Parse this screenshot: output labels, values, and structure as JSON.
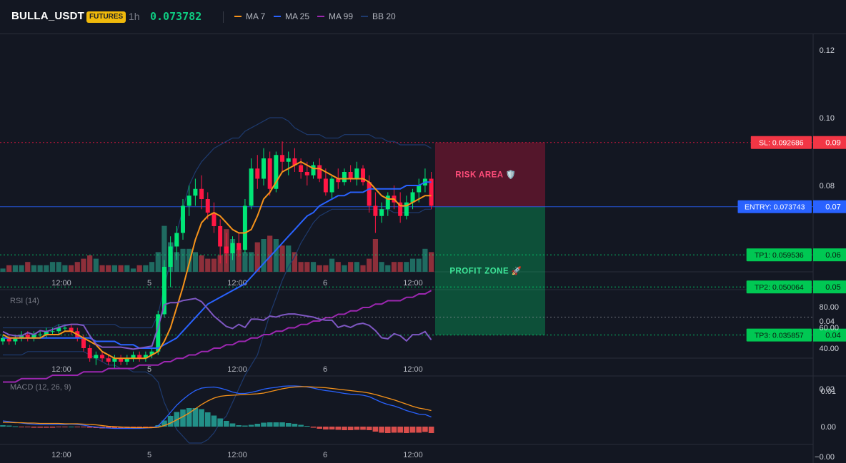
{
  "header": {
    "symbol": "BULLA_USDT",
    "badge": "FUTURES",
    "interval": "1h",
    "price": "0.073782",
    "legend": [
      {
        "label": "MA 7",
        "color": "#f7931a"
      },
      {
        "label": "MA 25",
        "color": "#2962ff"
      },
      {
        "label": "MA 99",
        "color": "#9c27b0"
      },
      {
        "label": "BB 20",
        "color": "#1e3a6e"
      }
    ]
  },
  "colors": {
    "up": "#26a69a",
    "down": "#ef5350",
    "candle_up": "#00e676",
    "candle_down": "#ff1744",
    "bb": "#1e3a6e"
  },
  "chart_data": [
    {
      "type": "candlestick",
      "xticks": [
        "12:00",
        "5",
        "12:00",
        "6",
        "12:00"
      ],
      "yticks": [
        "0.12",
        "0.10",
        "0.08",
        "0.04",
        "0.02",
        "−0.00"
      ],
      "ylim": [
        -0.012,
        0.126
      ],
      "candles": [
        [
          0.034,
          0.036,
          0.033,
          0.035
        ],
        [
          0.035,
          0.036,
          0.033,
          0.034
        ],
        [
          0.034,
          0.036,
          0.033,
          0.035
        ],
        [
          0.035,
          0.037,
          0.034,
          0.036
        ],
        [
          0.036,
          0.037,
          0.034,
          0.035
        ],
        [
          0.035,
          0.037,
          0.034,
          0.036
        ],
        [
          0.036,
          0.037,
          0.035,
          0.036
        ],
        [
          0.036,
          0.038,
          0.035,
          0.037
        ],
        [
          0.037,
          0.038,
          0.036,
          0.037
        ],
        [
          0.037,
          0.039,
          0.036,
          0.038
        ],
        [
          0.038,
          0.039,
          0.037,
          0.038
        ],
        [
          0.038,
          0.039,
          0.036,
          0.037
        ],
        [
          0.037,
          0.038,
          0.034,
          0.035
        ],
        [
          0.035,
          0.036,
          0.031,
          0.032
        ],
        [
          0.032,
          0.033,
          0.028,
          0.029
        ],
        [
          0.029,
          0.031,
          0.027,
          0.03
        ],
        [
          0.03,
          0.031,
          0.028,
          0.029
        ],
        [
          0.029,
          0.03,
          0.027,
          0.028
        ],
        [
          0.028,
          0.03,
          0.026,
          0.029
        ],
        [
          0.029,
          0.03,
          0.027,
          0.028
        ],
        [
          0.028,
          0.03,
          0.027,
          0.029
        ],
        [
          0.029,
          0.031,
          0.028,
          0.03
        ],
        [
          0.03,
          0.031,
          0.028,
          0.029
        ],
        [
          0.029,
          0.031,
          0.028,
          0.03
        ],
        [
          0.03,
          0.032,
          0.029,
          0.031
        ],
        [
          0.031,
          0.043,
          0.03,
          0.042
        ],
        [
          0.042,
          0.058,
          0.041,
          0.056
        ],
        [
          0.056,
          0.065,
          0.05,
          0.062
        ],
        [
          0.062,
          0.068,
          0.058,
          0.066
        ],
        [
          0.066,
          0.076,
          0.064,
          0.074
        ],
        [
          0.074,
          0.08,
          0.071,
          0.077
        ],
        [
          0.077,
          0.082,
          0.074,
          0.079
        ],
        [
          0.079,
          0.083,
          0.073,
          0.076
        ],
        [
          0.076,
          0.078,
          0.07,
          0.072
        ],
        [
          0.072,
          0.075,
          0.066,
          0.068
        ],
        [
          0.068,
          0.07,
          0.057,
          0.062
        ],
        [
          0.062,
          0.066,
          0.057,
          0.06
        ],
        [
          0.06,
          0.065,
          0.058,
          0.063
        ],
        [
          0.063,
          0.066,
          0.059,
          0.061
        ],
        [
          0.061,
          0.076,
          0.06,
          0.074
        ],
        [
          0.074,
          0.088,
          0.073,
          0.085
        ],
        [
          0.085,
          0.089,
          0.079,
          0.082
        ],
        [
          0.082,
          0.091,
          0.08,
          0.088
        ],
        [
          0.088,
          0.09,
          0.077,
          0.079
        ],
        [
          0.079,
          0.09,
          0.078,
          0.089
        ],
        [
          0.089,
          0.093,
          0.084,
          0.087
        ],
        [
          0.087,
          0.09,
          0.083,
          0.088
        ],
        [
          0.088,
          0.091,
          0.084,
          0.086
        ],
        [
          0.086,
          0.088,
          0.082,
          0.084
        ],
        [
          0.084,
          0.087,
          0.08,
          0.083
        ],
        [
          0.083,
          0.087,
          0.082,
          0.086
        ],
        [
          0.086,
          0.088,
          0.081,
          0.082
        ],
        [
          0.082,
          0.085,
          0.077,
          0.078
        ],
        [
          0.078,
          0.083,
          0.076,
          0.082
        ],
        [
          0.082,
          0.085,
          0.079,
          0.081
        ],
        [
          0.081,
          0.085,
          0.08,
          0.084
        ],
        [
          0.084,
          0.086,
          0.081,
          0.082
        ],
        [
          0.082,
          0.087,
          0.08,
          0.085
        ],
        [
          0.085,
          0.086,
          0.08,
          0.081
        ],
        [
          0.081,
          0.083,
          0.072,
          0.074
        ],
        [
          0.074,
          0.078,
          0.066,
          0.071
        ],
        [
          0.071,
          0.075,
          0.069,
          0.073
        ],
        [
          0.073,
          0.078,
          0.071,
          0.077
        ],
        [
          0.077,
          0.08,
          0.073,
          0.075
        ],
        [
          0.075,
          0.078,
          0.069,
          0.071
        ],
        [
          0.071,
          0.077,
          0.07,
          0.075
        ],
        [
          0.075,
          0.079,
          0.073,
          0.078
        ],
        [
          0.078,
          0.082,
          0.075,
          0.08
        ],
        [
          0.08,
          0.085,
          0.078,
          0.082
        ],
        [
          0.082,
          0.084,
          0.073,
          0.074
        ]
      ],
      "ma7": [
        0.036,
        0.035,
        0.035,
        0.035,
        0.035,
        0.035,
        0.035,
        0.036,
        0.036,
        0.036,
        0.037,
        0.037,
        0.036,
        0.035,
        0.034,
        0.033,
        0.031,
        0.03,
        0.029,
        0.029,
        0.029,
        0.029,
        0.029,
        0.029,
        0.03,
        0.031,
        0.034,
        0.038,
        0.044,
        0.05,
        0.057,
        0.064,
        0.069,
        0.071,
        0.072,
        0.071,
        0.069,
        0.067,
        0.066,
        0.066,
        0.067,
        0.071,
        0.076,
        0.078,
        0.081,
        0.084,
        0.085,
        0.086,
        0.087,
        0.086,
        0.085,
        0.085,
        0.084,
        0.083,
        0.082,
        0.082,
        0.082,
        0.082,
        0.082,
        0.081,
        0.079,
        0.077,
        0.076,
        0.076,
        0.074,
        0.074,
        0.075,
        0.076,
        0.077,
        0.077
      ],
      "ma25": [
        0.035,
        0.035,
        0.035,
        0.035,
        0.035,
        0.035,
        0.035,
        0.035,
        0.035,
        0.035,
        0.035,
        0.035,
        0.035,
        0.035,
        0.035,
        0.034,
        0.034,
        0.034,
        0.034,
        0.033,
        0.033,
        0.033,
        0.032,
        0.032,
        0.032,
        0.032,
        0.033,
        0.034,
        0.035,
        0.037,
        0.039,
        0.041,
        0.043,
        0.045,
        0.046,
        0.047,
        0.048,
        0.049,
        0.05,
        0.051,
        0.053,
        0.055,
        0.057,
        0.059,
        0.061,
        0.063,
        0.065,
        0.067,
        0.069,
        0.071,
        0.072,
        0.074,
        0.075,
        0.076,
        0.077,
        0.077,
        0.078,
        0.078,
        0.078,
        0.079,
        0.079,
        0.079,
        0.079,
        0.079,
        0.079,
        0.08,
        0.08,
        0.08,
        0.081,
        0.081
      ],
      "ma99": [
        0.022,
        0.022,
        0.022,
        0.023,
        0.023,
        0.023,
        0.023,
        0.023,
        0.024,
        0.024,
        0.024,
        0.024,
        0.024,
        0.025,
        0.025,
        0.025,
        0.025,
        0.026,
        0.026,
        0.026,
        0.026,
        0.026,
        0.027,
        0.027,
        0.027,
        0.027,
        0.028,
        0.028,
        0.029,
        0.029,
        0.03,
        0.03,
        0.031,
        0.031,
        0.032,
        0.032,
        0.033,
        0.033,
        0.034,
        0.034,
        0.035,
        0.035,
        0.036,
        0.036,
        0.037,
        0.037,
        0.038,
        0.038,
        0.039,
        0.039,
        0.04,
        0.04,
        0.041,
        0.041,
        0.042,
        0.042,
        0.043,
        0.043,
        0.044,
        0.044,
        0.045,
        0.045,
        0.046,
        0.046,
        0.046,
        0.047,
        0.047,
        0.048,
        0.048,
        0.049
      ],
      "bb_upper": [
        0.038,
        0.038,
        0.038,
        0.038,
        0.038,
        0.038,
        0.038,
        0.038,
        0.038,
        0.039,
        0.039,
        0.039,
        0.039,
        0.039,
        0.039,
        0.039,
        0.039,
        0.039,
        0.039,
        0.038,
        0.038,
        0.038,
        0.038,
        0.038,
        0.038,
        0.042,
        0.05,
        0.058,
        0.066,
        0.073,
        0.08,
        0.084,
        0.087,
        0.089,
        0.091,
        0.092,
        0.093,
        0.094,
        0.094,
        0.096,
        0.097,
        0.098,
        0.099,
        0.1,
        0.1,
        0.1,
        0.099,
        0.097,
        0.096,
        0.095,
        0.095,
        0.095,
        0.094,
        0.094,
        0.094,
        0.095,
        0.095,
        0.095,
        0.095,
        0.095,
        0.094,
        0.094,
        0.093,
        0.093,
        0.092,
        0.092,
        0.092,
        0.092,
        0.092,
        0.091
      ],
      "bb_lower": [
        0.03,
        0.03,
        0.03,
        0.03,
        0.031,
        0.031,
        0.031,
        0.031,
        0.031,
        0.031,
        0.031,
        0.031,
        0.031,
        0.031,
        0.03,
        0.029,
        0.028,
        0.027,
        0.027,
        0.026,
        0.026,
        0.025,
        0.025,
        0.025,
        0.024,
        0.022,
        0.016,
        0.012,
        0.008,
        0.006,
        0.004,
        0.004,
        0.004,
        0.005,
        0.007,
        0.01,
        0.012,
        0.016,
        0.02,
        0.024,
        0.027,
        0.03,
        0.036,
        0.042,
        0.047,
        0.052,
        0.056,
        0.059,
        0.063,
        0.066,
        0.069,
        0.071,
        0.072,
        0.073,
        0.073,
        0.073,
        0.073,
        0.073,
        0.073,
        0.073,
        0.073,
        0.073,
        0.073,
        0.072,
        0.072,
        0.072,
        0.072,
        0.072,
        0.073,
        0.073
      ],
      "volume": [
        1,
        2,
        2,
        2,
        3,
        2,
        2,
        2,
        3,
        3,
        2,
        2,
        3,
        4,
        5,
        4,
        2,
        2,
        2,
        2,
        2,
        1,
        2,
        2,
        3,
        6,
        14,
        9,
        6,
        7,
        7,
        6,
        5,
        4,
        4,
        5,
        13,
        10,
        7,
        6,
        6,
        9,
        10,
        11,
        10,
        8,
        8,
        6,
        3,
        3,
        3,
        2,
        2,
        4,
        3,
        2,
        3,
        3,
        2,
        4,
        10,
        3,
        2,
        3,
        3,
        3,
        4,
        4,
        7,
        6
      ],
      "levels": [
        {
          "name": "SL",
          "label": "SL: 0.092686",
          "value": 0.092686,
          "tag": "0.09",
          "color": "#ff1744",
          "style": "dashed"
        },
        {
          "name": "ENTRY",
          "label": "ENTRY: 0.073743",
          "value": 0.073743,
          "tag": "0.07",
          "color": "#2962ff",
          "style": "solid"
        },
        {
          "name": "TP1",
          "label": "TP1: 0.059536",
          "value": 0.059536,
          "tag": "0.06",
          "color": "#00e676",
          "style": "dashed"
        },
        {
          "name": "TP2",
          "label": "TP2: 0.050064",
          "value": 0.050064,
          "tag": "0.05",
          "color": "#00e676",
          "style": "dashed"
        },
        {
          "name": "TP3",
          "label": "TP3: 0.035857",
          "value": 0.035857,
          "tag": "0.04",
          "color": "#00e676",
          "style": "dashed"
        }
      ],
      "zones": [
        {
          "name": "risk-area",
          "label": "RISK AREA 🛡️",
          "from": 0.092686,
          "to": 0.073743,
          "color": "#ff1744"
        },
        {
          "name": "profit-zone",
          "label": "PROFIT ZONE 🚀",
          "from": 0.073743,
          "to": 0.035857,
          "color": "#00e676"
        }
      ]
    },
    {
      "type": "line",
      "title": "RSI (14)",
      "yticks": [
        "80.00",
        "60.00",
        "40.00"
      ],
      "ylim": [
        31,
        103
      ],
      "overbought": 70,
      "values": [
        56,
        53,
        52,
        52,
        55,
        53,
        57,
        56,
        58,
        60,
        62,
        63,
        63,
        62,
        52,
        44,
        41,
        41,
        41,
        41,
        40,
        39,
        40,
        41,
        42,
        60,
        82,
        84,
        84,
        86,
        87,
        88,
        85,
        78,
        71,
        66,
        61,
        59,
        63,
        60,
        68,
        68,
        67,
        71,
        70,
        72,
        73,
        73,
        72,
        71,
        70,
        68,
        67,
        67,
        60,
        62,
        60,
        63,
        64,
        62,
        57,
        50,
        49,
        54,
        52,
        47,
        53,
        53,
        56,
        48
      ]
    },
    {
      "type": "line",
      "title": "MACD (12, 26, 9)",
      "yticks": [
        "0.01",
        "0.00"
      ],
      "ylim": [
        -0.0045,
        0.0135
      ],
      "macd": [
        0.0016,
        0.0014,
        0.0012,
        0.001,
        0.0008,
        0.0007,
        0.0006,
        0.0006,
        0.0006,
        0.0006,
        0.0006,
        0.0007,
        0.0006,
        0.0004,
        0.0001,
        -0.0001,
        -0.0003,
        -0.0004,
        -0.0005,
        -0.0005,
        -0.0005,
        -0.0005,
        -0.0005,
        -0.0004,
        -0.0003,
        0.0002,
        0.002,
        0.004,
        0.006,
        0.0076,
        0.009,
        0.0101,
        0.0108,
        0.011,
        0.0111,
        0.0108,
        0.0103,
        0.0097,
        0.0093,
        0.0093,
        0.0096,
        0.01,
        0.0105,
        0.0108,
        0.011,
        0.0113,
        0.0114,
        0.0114,
        0.0113,
        0.0111,
        0.0108,
        0.0104,
        0.0101,
        0.0099,
        0.0096,
        0.0093,
        0.0091,
        0.009,
        0.0088,
        0.0084,
        0.0076,
        0.0068,
        0.0062,
        0.0058,
        0.0052,
        0.0045,
        0.004,
        0.0035,
        0.0034,
        0.0027
      ],
      "signal": [
        0.0012,
        0.0012,
        0.0011,
        0.0011,
        0.001,
        0.001,
        0.0009,
        0.0009,
        0.0009,
        0.0009,
        0.0008,
        0.0008,
        0.0008,
        0.0007,
        0.0006,
        0.0005,
        0.0003,
        0.0001,
        0.0,
        -0.0001,
        -0.0002,
        -0.0003,
        -0.0003,
        -0.0003,
        -0.0003,
        -0.0002,
        0.0003,
        0.001,
        0.0019,
        0.0028,
        0.0038,
        0.005,
        0.0062,
        0.0072,
        0.008,
        0.0085,
        0.0087,
        0.0088,
        0.0089,
        0.009,
        0.0091,
        0.0092,
        0.0094,
        0.0098,
        0.0102,
        0.0106,
        0.0109,
        0.0111,
        0.0112,
        0.0112,
        0.0111,
        0.011,
        0.0109,
        0.0107,
        0.0105,
        0.0103,
        0.0101,
        0.0099,
        0.0097,
        0.0094,
        0.009,
        0.0085,
        0.008,
        0.0075,
        0.0069,
        0.0063,
        0.0057,
        0.0052,
        0.0049,
        0.0045
      ],
      "hist": [
        0.0004,
        0.0003,
        0.0001,
        -0.0001,
        -0.0002,
        -0.0003,
        -0.0003,
        -0.0003,
        -0.0003,
        -0.0002,
        -0.0001,
        0.0,
        -0.0001,
        -0.0002,
        -0.0003,
        -0.0004,
        -0.0005,
        -0.0005,
        -0.0005,
        -0.0005,
        -0.0004,
        -0.0003,
        -0.0002,
        -0.0002,
        -0.0001,
        0.0004,
        0.0017,
        0.003,
        0.0041,
        0.0048,
        0.0052,
        0.0052,
        0.0049,
        0.004,
        0.0031,
        0.0023,
        0.0016,
        0.0009,
        0.0004,
        0.0003,
        0.0005,
        0.0008,
        0.0011,
        0.0012,
        0.0012,
        0.0012,
        0.001,
        0.0008,
        0.0005,
        0.0002,
        -0.0003,
        -0.0006,
        -0.0008,
        -0.0008,
        -0.0009,
        -0.001,
        -0.001,
        -0.0009,
        -0.0009,
        -0.001,
        -0.0014,
        -0.0017,
        -0.0018,
        -0.0017,
        -0.0017,
        -0.0018,
        -0.0017,
        -0.0017,
        -0.0015,
        -0.0018
      ]
    }
  ]
}
